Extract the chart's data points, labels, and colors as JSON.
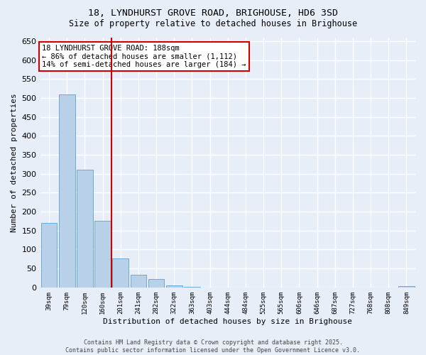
{
  "title_line1": "18, LYNDHURST GROVE ROAD, BRIGHOUSE, HD6 3SD",
  "title_line2": "Size of property relative to detached houses in Brighouse",
  "xlabel": "Distribution of detached houses by size in Brighouse",
  "ylabel": "Number of detached properties",
  "categories": [
    "39sqm",
    "79sqm",
    "120sqm",
    "160sqm",
    "201sqm",
    "241sqm",
    "282sqm",
    "322sqm",
    "363sqm",
    "403sqm",
    "444sqm",
    "484sqm",
    "525sqm",
    "565sqm",
    "606sqm",
    "646sqm",
    "687sqm",
    "727sqm",
    "768sqm",
    "808sqm",
    "849sqm"
  ],
  "values": [
    170,
    510,
    310,
    175,
    77,
    34,
    22,
    5,
    1,
    0,
    0,
    0,
    0,
    0,
    0,
    0,
    0,
    0,
    0,
    0,
    3
  ],
  "bar_color": "#b8d0e8",
  "bar_edge_color": "#6aaad4",
  "vline_color": "#cc0000",
  "annotation_text": "18 LYNDHURST GROVE ROAD: 188sqm\n← 86% of detached houses are smaller (1,112)\n14% of semi-detached houses are larger (184) →",
  "annotation_box_color": "#ffffff",
  "annotation_box_edge": "#cc0000",
  "ylim": [
    0,
    660
  ],
  "yticks": [
    0,
    50,
    100,
    150,
    200,
    250,
    300,
    350,
    400,
    450,
    500,
    550,
    600,
    650
  ],
  "bg_color": "#e8eef8",
  "grid_color": "#ffffff",
  "footer_line1": "Contains HM Land Registry data © Crown copyright and database right 2025.",
  "footer_line2": "Contains public sector information licensed under the Open Government Licence v3.0."
}
